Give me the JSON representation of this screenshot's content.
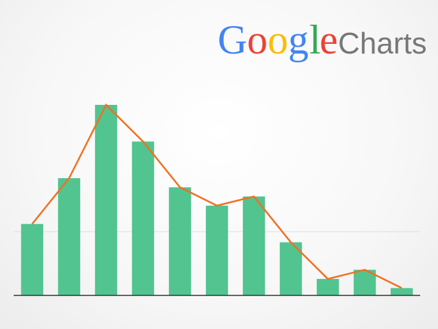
{
  "logo": {
    "wordmark": "Google",
    "product": "Charts",
    "colors": [
      "#4285F4",
      "#EA4335",
      "#FBBC05",
      "#4285F4",
      "#34A853",
      "#EA4335"
    ],
    "product_color": "#777777"
  },
  "chart_data": {
    "type": "bar",
    "categories": [
      "",
      "",
      "",
      "",
      "",
      "",
      "",
      "",
      "",
      "",
      ""
    ],
    "series": [
      {
        "type": "bar",
        "values": [
          3.9,
          6.4,
          10.4,
          8.4,
          5.9,
          4.9,
          5.4,
          2.9,
          0.9,
          1.4,
          0.4
        ],
        "color": "#52c490"
      },
      {
        "type": "line",
        "values": [
          3.9,
          6.4,
          10.4,
          8.4,
          5.9,
          4.9,
          5.4,
          2.9,
          0.9,
          1.4,
          0.4
        ],
        "color": "#f07020"
      }
    ],
    "title": "",
    "xlabel": "",
    "ylabel": "",
    "ylim": [
      0,
      10.4
    ],
    "grid": true,
    "legend": "none"
  }
}
